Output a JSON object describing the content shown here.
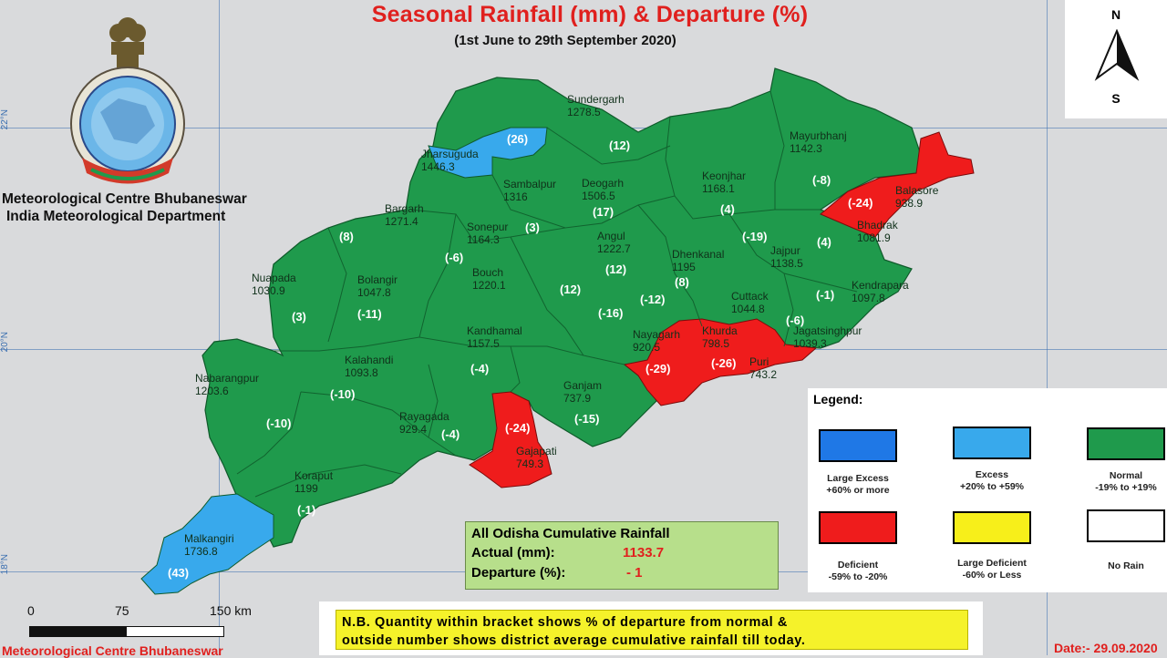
{
  "header": {
    "title": "Seasonal Rainfall (mm) & Departure (%)",
    "subtitle": "(1st June to 29th September 2020)"
  },
  "organization": {
    "line1": "Meteorological Centre Bhubaneswar",
    "line2": "India Meteorological Department"
  },
  "grid_labels": [
    "22°N",
    "20°N",
    "18°N"
  ],
  "compass": {
    "north": "N",
    "south": "S"
  },
  "districts": [
    {
      "name": "Sundergarh",
      "rainfall": "1278.5",
      "departure": "(12)",
      "category": "normal"
    },
    {
      "name": "Jharsuguda",
      "rainfall": "1446.3",
      "departure": "(26)",
      "category": "excess"
    },
    {
      "name": "Sambalpur",
      "rainfall": "1316",
      "departure": "(-6)",
      "category": "normal"
    },
    {
      "name": "Deogarh",
      "rainfall": "1506.5",
      "departure": "(17)",
      "category": "normal"
    },
    {
      "name": "Mayurbhanj",
      "rainfall": "1142.3",
      "departure": "(-8)",
      "category": "normal"
    },
    {
      "name": "Keonjhar",
      "rainfall": "1168.1",
      "departure": "(4)",
      "category": "normal"
    },
    {
      "name": "Balasore",
      "rainfall": "938.9",
      "departure": "(-24)",
      "category": "deficient"
    },
    {
      "name": "Bhadrak",
      "rainfall": "1081.9",
      "departure": "(4)",
      "category": "normal"
    },
    {
      "name": "Bargarh",
      "rainfall": "1271.4",
      "departure": "(8)",
      "category": "normal"
    },
    {
      "name": "Sonepur",
      "rainfall": "1164.3",
      "departure": "(3)",
      "category": "normal"
    },
    {
      "name": "Angul",
      "rainfall": "1222.7",
      "departure": "(12)",
      "category": "normal"
    },
    {
      "name": "Dhenkanal",
      "rainfall": "1195",
      "departure": "(8)",
      "category": "normal"
    },
    {
      "name": "Jajpur",
      "rainfall": "1138.5",
      "departure": "(-19)",
      "category": "normal"
    },
    {
      "name": "Kendrapara",
      "rainfall": "1097.8",
      "departure": "(-1)",
      "category": "normal"
    },
    {
      "name": "Nuapada",
      "rainfall": "1030.9",
      "departure": "(3)",
      "category": "normal"
    },
    {
      "name": "Bolangir",
      "rainfall": "1047.8",
      "departure": "(-11)",
      "category": "normal"
    },
    {
      "name": "Bouch",
      "rainfall": "1220.1",
      "departure": "(12)",
      "category": "normal"
    },
    {
      "name": "Cuttack",
      "rainfall": "1044.8",
      "departure": "(-12)",
      "category": "normal"
    },
    {
      "name": "Jagatsinghpur",
      "rainfall": "1039.3",
      "departure": "(-6)",
      "category": "normal"
    },
    {
      "name": "Kandhamal",
      "rainfall": "1157.5",
      "departure": "(-16)",
      "category": "normal"
    },
    {
      "name": "Nayagarh",
      "rainfall": "920.5",
      "departure": "(-4)",
      "category": "normal"
    },
    {
      "name": "Khurda",
      "rainfall": "798.5",
      "departure": "(-29)",
      "category": "deficient"
    },
    {
      "name": "Puri",
      "rainfall": "743.2",
      "departure": "(-26)",
      "category": "deficient"
    },
    {
      "name": "Nabarangpur",
      "rainfall": "1203.6",
      "departure": "(-10)",
      "category": "normal"
    },
    {
      "name": "Kalahandi",
      "rainfall": "1093.8",
      "departure": "(-10)",
      "category": "normal"
    },
    {
      "name": "Rayagada",
      "rainfall": "929.4",
      "departure": "(-4)",
      "category": "normal"
    },
    {
      "name": "Ganjam",
      "rainfall": "737.9",
      "departure": "(-15)",
      "category": "normal"
    },
    {
      "name": "Gajapati",
      "rainfall": "749.3",
      "departure": "(-24)",
      "category": "deficient"
    },
    {
      "name": "Koraput",
      "rainfall": "1199",
      "departure": "(-1)",
      "category": "normal"
    },
    {
      "name": "Malkangiri",
      "rainfall": "1736.8",
      "departure": "(43)",
      "category": "excess"
    }
  ],
  "legend": {
    "title": "Legend:",
    "items": [
      {
        "label": "Large Excess",
        "range": "+60% or more",
        "color": "#1f78e6"
      },
      {
        "label": "Excess",
        "range": "+20% to +59%",
        "color": "#38a9ec"
      },
      {
        "label": "Normal",
        "range": "-19% to +19%",
        "color": "#1f9a4c"
      },
      {
        "label": "Deficient",
        "range": "-59% to -20%",
        "color": "#ef1c1c"
      },
      {
        "label": "Large Deficient",
        "range": "-60% or Less",
        "color": "#f7ef1a"
      },
      {
        "label": "No Rain",
        "range": "",
        "color": "#ffffff"
      }
    ]
  },
  "cumulative": {
    "heading": "All Odisha Cumulative Rainfall",
    "actual_label": "Actual (mm):",
    "actual_value": "1133.7",
    "departure_label": "Departure (%):",
    "departure_value": "- 1"
  },
  "note": {
    "line1": "N.B. Quantity within bracket shows % of departure from normal &",
    "line2": "outside number shows district average cumulative rainfall till today."
  },
  "scale": {
    "t0": "0",
    "t1": "75",
    "t2": "150 km"
  },
  "footer": {
    "left": "Meteorological Centre Bhubaneswar",
    "date": "Date:- 29.09.2020"
  },
  "colors": {
    "normal": "#1f9a4c",
    "excess": "#38a9ec",
    "deficient": "#ef1c1c",
    "title": "#e0201e"
  }
}
